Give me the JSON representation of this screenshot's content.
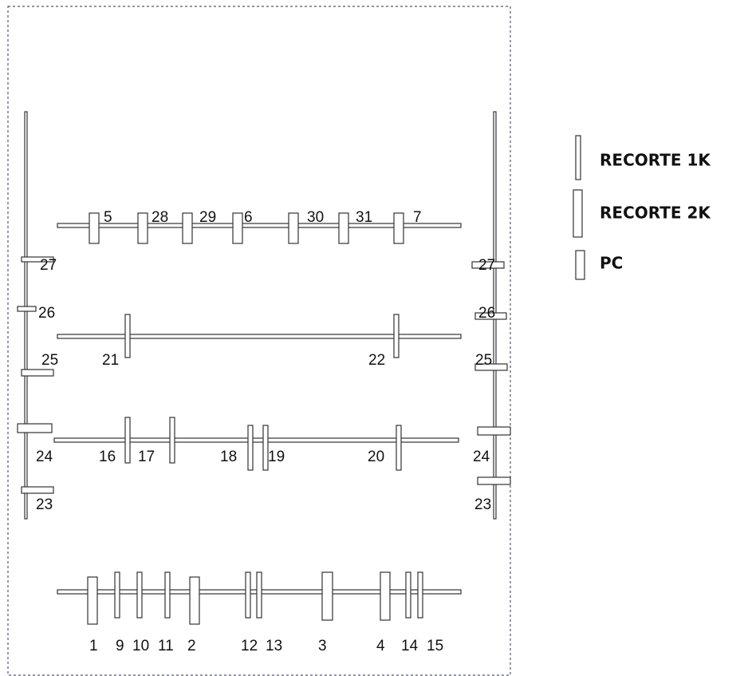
{
  "legend": [
    {
      "label": "RECORTE 1K"
    },
    {
      "label": "RECORTE 2K"
    },
    {
      "label": "PC"
    }
  ],
  "rows": [
    {
      "labels": [
        "5",
        "28",
        "29",
        "6",
        "30",
        "31",
        "7"
      ]
    },
    {
      "labels": [
        "21",
        "22"
      ]
    },
    {
      "labels": [
        "16",
        "17",
        "18",
        "19",
        "20"
      ]
    },
    {
      "labels": [
        "1",
        "9",
        "10",
        "11",
        "2",
        "12",
        "13",
        "3",
        "4",
        "14",
        "15"
      ]
    }
  ],
  "left_post": {
    "labels": [
      "27",
      "26",
      "25",
      "24",
      "23"
    ]
  },
  "right_post": {
    "labels": [
      "27",
      "26",
      "25",
      "24",
      "23"
    ]
  }
}
